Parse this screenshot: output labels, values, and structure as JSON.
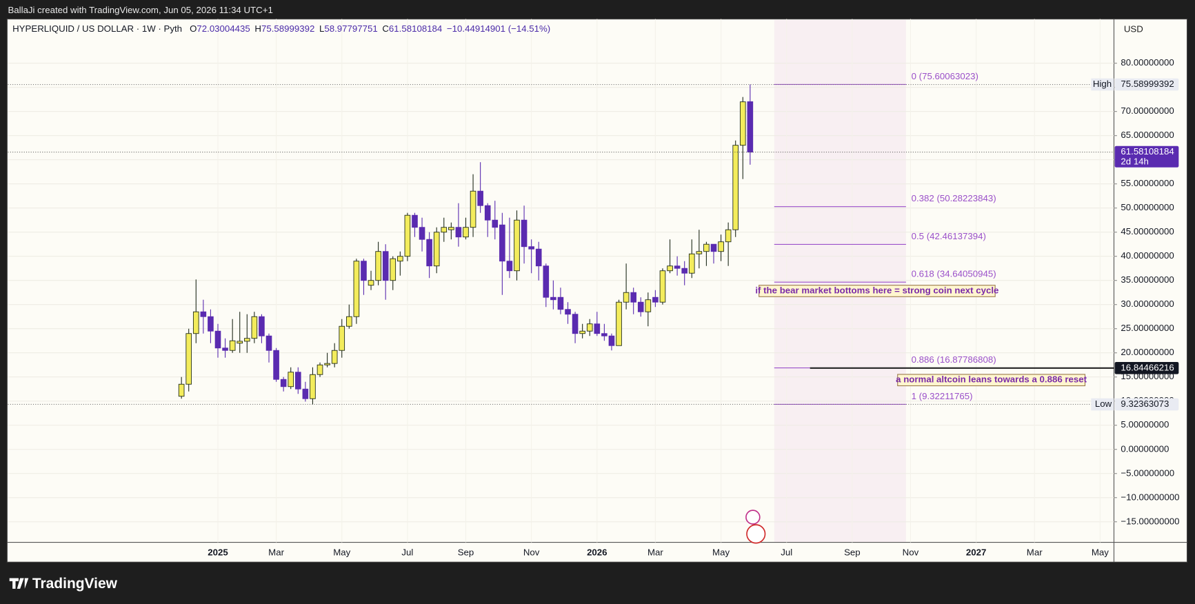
{
  "header": "BallaJi created with TradingView.com, Jun 05, 2026 11:34 UTC+1",
  "footer_logo": "TradingView",
  "chart_data": {
    "type": "candlestick",
    "title": "HYPERLIQUID / US DOLLAR · 1W · Pyth",
    "ohlc_legend": [
      {
        "label": "O",
        "value": "72.03004435"
      },
      {
        "label": "H",
        "value": "75.58999392"
      },
      {
        "label": "L",
        "value": "58.97797751"
      },
      {
        "label": "C",
        "value": "61.58108184"
      }
    ],
    "change": "−10.44914901 (−14.51%)",
    "currency": "USD",
    "up_color": "#f3ec5c",
    "down_color": "#5a2bb0",
    "open": [
      11,
      13.5,
      24,
      28.5,
      27.5,
      24.5,
      21,
      20.5,
      22,
      22.4,
      23,
      27.5,
      23.5,
      20.5,
      14.5,
      13,
      16,
      12.5,
      10.5,
      15.5,
      17.5,
      17.8,
      20.5,
      25.5,
      27.5,
      39,
      34,
      35,
      41,
      35,
      39,
      40,
      48.5,
      46,
      43.5,
      38,
      45,
      45.5,
      46,
      44,
      46,
      53.5,
      50.5,
      47.5,
      46.5,
      39,
      37,
      47.5,
      42,
      41.5,
      38,
      31.5,
      31.5,
      29,
      28,
      24,
      24.5,
      26,
      24,
      23.5,
      21.5,
      30.5,
      32.5,
      30.5,
      28.5,
      31.5,
      30.5,
      37,
      38,
      37.5,
      36.5,
      40.5,
      41,
      42.5,
      41,
      43,
      45.5,
      63,
      72.03004435
    ],
    "high": [
      15,
      25,
      35.2,
      31,
      29,
      26,
      23,
      27,
      28.5,
      28,
      28.5,
      28,
      24,
      21,
      15,
      17,
      17,
      14,
      17,
      18,
      20,
      22,
      27,
      30,
      39.5,
      39.5,
      37,
      43,
      42.5,
      40,
      41,
      49,
      49,
      48,
      45,
      46,
      48,
      47,
      51,
      48,
      57,
      59.5,
      51,
      51.5,
      49,
      48,
      49.5,
      50.5,
      43.5,
      43,
      38.5,
      35,
      33.5,
      30.5,
      28.5,
      26,
      27,
      28.5,
      26,
      24,
      31,
      38.5,
      33.5,
      31.5,
      32.5,
      33,
      37.5,
      43.5,
      40,
      39,
      43.5,
      45.5,
      43,
      42.5,
      44.5,
      47,
      64,
      73,
      75.58999392
    ],
    "low": [
      10.5,
      12,
      22,
      24,
      22,
      19,
      19,
      20,
      20,
      20,
      22,
      22,
      18,
      14,
      12,
      12.5,
      11.5,
      9.9,
      9.32363073,
      15,
      17,
      17,
      19,
      25,
      26,
      32,
      33,
      34,
      31,
      33,
      36,
      39,
      44,
      41,
      35.5,
      36.5,
      43,
      43.5,
      42,
      43.5,
      44,
      49,
      44,
      43.5,
      32,
      35.5,
      35,
      38.5,
      36.5,
      35,
      29.5,
      29,
      28,
      26,
      22,
      23,
      23.5,
      23.5,
      22.5,
      20.5,
      21.5,
      29,
      28,
      27.5,
      25.5,
      29.5,
      30,
      36.5,
      36,
      34,
      35.5,
      37.5,
      38,
      38.5,
      39,
      38,
      44,
      56,
      58.97797751
    ],
    "close": [
      13.5,
      24,
      28.5,
      27.5,
      24.5,
      21,
      20.5,
      22.5,
      22.4,
      23,
      27.5,
      23.5,
      20.5,
      14.5,
      13,
      16,
      12.5,
      10.5,
      15.5,
      17.5,
      17.8,
      20.5,
      25.5,
      27.5,
      39,
      35,
      35,
      41,
      35,
      39.5,
      40,
      48.5,
      46,
      43.5,
      38,
      45,
      46,
      46,
      44,
      46,
      53.5,
      50.5,
      47.5,
      46,
      39,
      37,
      47.5,
      42,
      41.5,
      38,
      31.5,
      31,
      29,
      28,
      24,
      24.5,
      26,
      24,
      23.5,
      21.5,
      30.5,
      32.5,
      30.5,
      28.5,
      31,
      30.5,
      37,
      38,
      37.5,
      36.5,
      40.5,
      41,
      42.5,
      41,
      43,
      45.5,
      63,
      72,
      61.58108184
    ],
    "ylim": [
      -19.25,
      89.15
    ],
    "yticks": [
      {
        "value": 80,
        "label": "80.00000000"
      },
      {
        "value": 75,
        "label": "75.00000000"
      },
      {
        "value": 70,
        "label": "70.00000000"
      },
      {
        "value": 65,
        "label": "65.00000000"
      },
      {
        "value": 60,
        "label": "60.00000000"
      },
      {
        "value": 55,
        "label": "55.00000000"
      },
      {
        "value": 50,
        "label": "50.00000000"
      },
      {
        "value": 45,
        "label": "45.00000000"
      },
      {
        "value": 40,
        "label": "40.00000000"
      },
      {
        "value": 35,
        "label": "35.00000000"
      },
      {
        "value": 30,
        "label": "30.00000000"
      },
      {
        "value": 25,
        "label": "25.00000000"
      },
      {
        "value": 20,
        "label": "20.00000000"
      },
      {
        "value": 15,
        "label": "15.00000000"
      },
      {
        "value": 10,
        "label": "10.00000000"
      },
      {
        "value": 5,
        "label": "5.00000000"
      },
      {
        "value": 0,
        "label": "0.00000000"
      },
      {
        "value": -5,
        "label": "−5.00000000"
      },
      {
        "value": -10,
        "label": "−10.00000000"
      },
      {
        "value": -15,
        "label": "−15.00000000"
      }
    ],
    "xlim": [
      -23.8,
      127.9
    ],
    "xticks": [
      {
        "value": 5,
        "label": "2025"
      },
      {
        "value": 13,
        "label": "Mar"
      },
      {
        "value": 22,
        "label": "May"
      },
      {
        "value": 31,
        "label": "Jul"
      },
      {
        "value": 39,
        "label": "Sep"
      },
      {
        "value": 48,
        "label": "Nov"
      },
      {
        "value": 57,
        "label": "2026"
      },
      {
        "value": 65,
        "label": "Mar"
      },
      {
        "value": 74,
        "label": "May"
      },
      {
        "value": 83,
        "label": "Jul"
      },
      {
        "value": 92,
        "label": "Sep"
      },
      {
        "value": 100,
        "label": "Nov"
      },
      {
        "value": 109,
        "label": "2027"
      },
      {
        "value": 117,
        "label": "Mar"
      },
      {
        "value": 126,
        "label": "May"
      }
    ],
    "grid": true,
    "fib_color": "#9a4fc9",
    "fib_levels": [
      {
        "label": "0 (75.60063023)",
        "value": 75.60063023
      },
      {
        "label": "0.382 (50.28223843)",
        "value": 50.28223843
      },
      {
        "label": "0.5 (42.46137394)",
        "value": 42.46137394
      },
      {
        "label": "0.618 (34.64050945)",
        "value": 34.64050945
      },
      {
        "label": "0.886 (16.87786808)",
        "value": 16.87786808
      },
      {
        "label": "1 (9.32211765)",
        "value": 9.32211765
      }
    ],
    "annotations": [
      "if the bear market bottoms here = strong coin next cycle",
      "a normal altcoin leans towards a 0.886 reset"
    ],
    "high_tag": {
      "label": "High",
      "value": 75.58999392
    },
    "last_tag": {
      "value": 61.58108184,
      "countdown": "2d 14h"
    },
    "marker_tag": {
      "value": 16.84466216
    },
    "low_tag": {
      "label": "Low",
      "value": 9.32363073
    }
  }
}
